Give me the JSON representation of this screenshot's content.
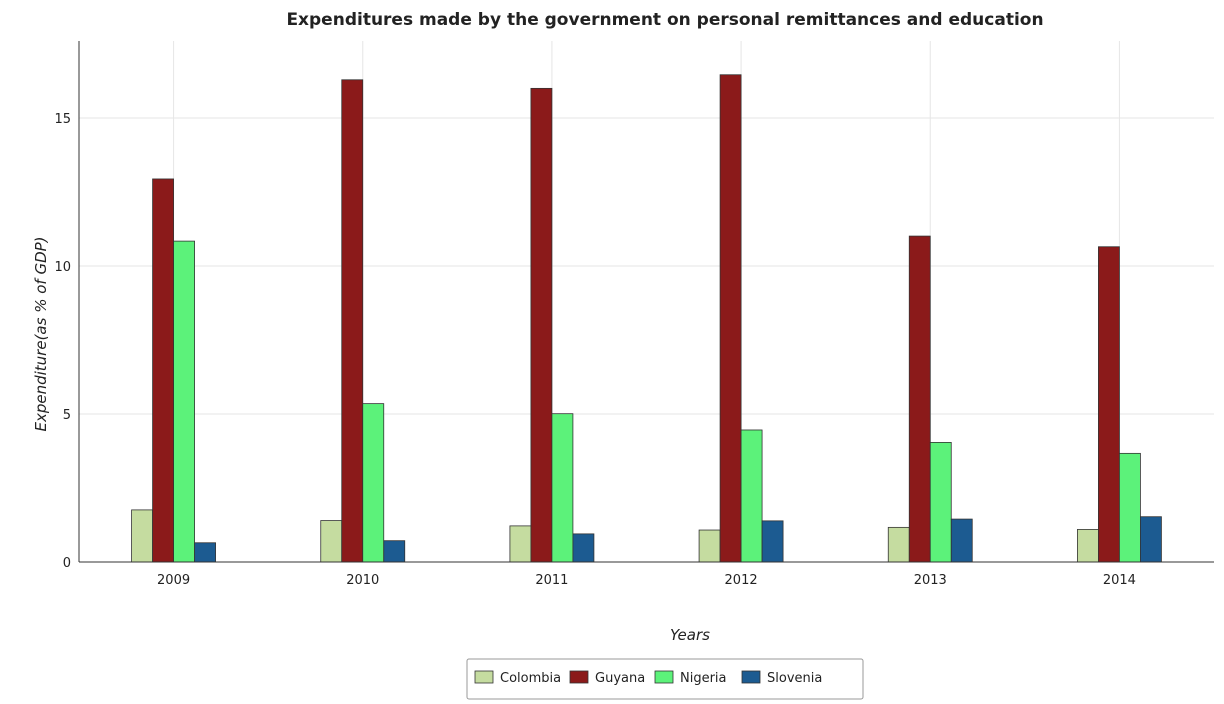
{
  "chart_data": {
    "type": "bar",
    "title": "Expenditures made by the government on personal remittances and education",
    "xlabel": "Years",
    "ylabel": "Expenditure(as % of GDP)",
    "categories": [
      "2009",
      "2010",
      "2011",
      "2012",
      "2013",
      "2014"
    ],
    "ylim": [
      0,
      17.6
    ],
    "yticks": [
      0,
      5,
      10,
      15
    ],
    "grid": true,
    "legend_position": "bottom-center",
    "series": [
      {
        "name": "Colombia",
        "color": "#c5dca0",
        "values": [
          1.76,
          1.4,
          1.22,
          1.08,
          1.17,
          1.1
        ]
      },
      {
        "name": "Guyana",
        "color": "#8b1a1a",
        "values": [
          12.94,
          16.29,
          16.0,
          16.46,
          11.01,
          10.65
        ]
      },
      {
        "name": "Nigeria",
        "color": "#5cf27a",
        "values": [
          10.84,
          5.35,
          5.01,
          4.46,
          4.04,
          3.67
        ]
      },
      {
        "name": "Slovenia",
        "color": "#1c5b91",
        "values": [
          0.65,
          0.72,
          0.95,
          1.39,
          1.45,
          1.53
        ]
      }
    ]
  }
}
